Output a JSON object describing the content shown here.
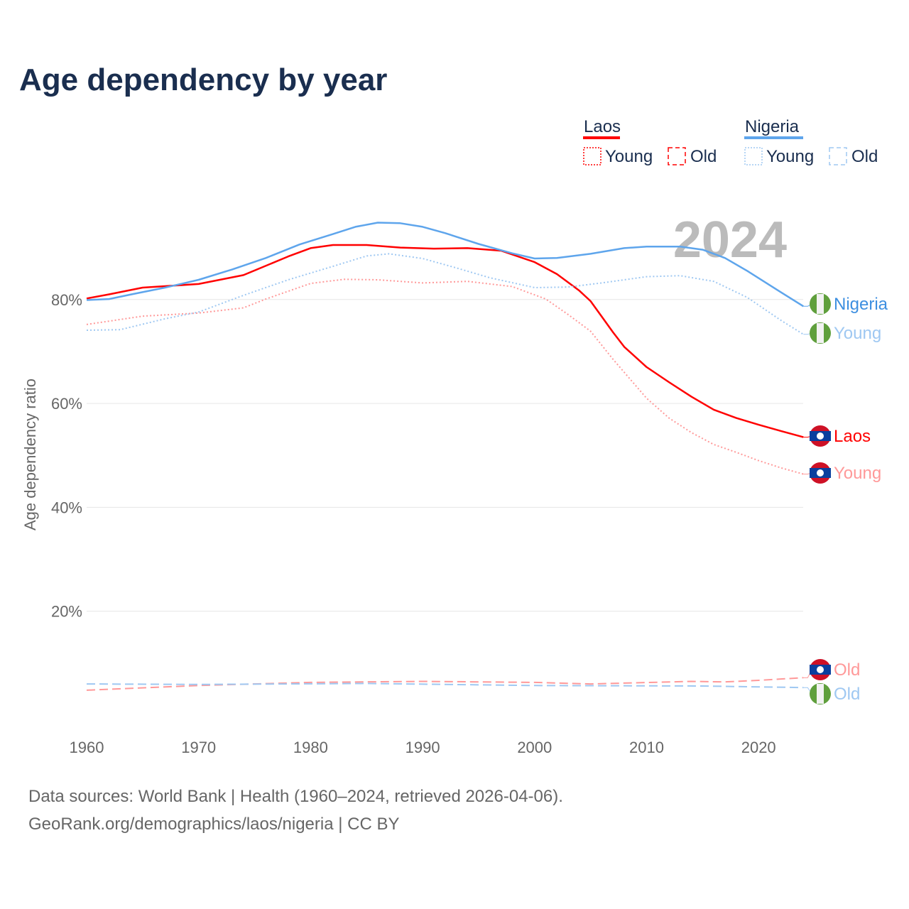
{
  "chart_data": {
    "type": "line",
    "title": "Age dependency by year",
    "ylabel": "Age dependency ratio",
    "xlabel": "",
    "year_watermark": "2024",
    "xlim": [
      1960,
      2024
    ],
    "ylim": [
      0,
      100
    ],
    "yticks": [
      20,
      40,
      60,
      80
    ],
    "ytick_labels": [
      "20%",
      "40%",
      "60%",
      "80%"
    ],
    "xticks": [
      1960,
      1970,
      1980,
      1990,
      2000,
      2010,
      2020
    ],
    "xtick_labels": [
      "1960",
      "1970",
      "1980",
      "1990",
      "2000",
      "2010",
      "2020"
    ],
    "grid": true,
    "legend": {
      "placement": "top-right",
      "groups": [
        {
          "country": "Laos",
          "color": "#ff0000",
          "items": [
            "Young",
            "Old"
          ]
        },
        {
          "country": "Nigeria",
          "color": "#5ea5ec",
          "items": [
            "Young",
            "Old"
          ]
        }
      ]
    },
    "series": [
      {
        "name": "Laos",
        "label": "Laos",
        "kind": "total",
        "color": "#ff0000",
        "flag": "laos",
        "x": [
          1960,
          1962,
          1965,
          1970,
          1974,
          1978,
          1980,
          1982,
          1985,
          1988,
          1991,
          1994,
          1997,
          2000,
          2002,
          2004,
          2005,
          2006,
          2007,
          2008,
          2010,
          2012,
          2014,
          2016,
          2018,
          2020,
          2022,
          2024
        ],
        "y": [
          80.2,
          81,
          82.3,
          83,
          84.7,
          88.3,
          89.9,
          90.5,
          90.5,
          90,
          89.8,
          89.9,
          89.4,
          87.2,
          84.9,
          81.7,
          79.7,
          76.7,
          73.7,
          70.9,
          67,
          64.1,
          61.3,
          58.8,
          57.2,
          55.9,
          54.7,
          53.5
        ]
      },
      {
        "name": "Laos Young",
        "label": "Young",
        "kind": "young",
        "color": "#ff9999",
        "flag": "laos",
        "x": [
          1960,
          1965,
          1970,
          1974,
          1976,
          1980,
          1983,
          1986,
          1990,
          1994,
          1998,
          2001,
          2003,
          2005,
          2007,
          2010,
          2012,
          2014,
          2016,
          2018,
          2020,
          2022,
          2024
        ],
        "y": [
          75.2,
          76.8,
          77.4,
          78.4,
          80.1,
          83.1,
          83.9,
          83.8,
          83.2,
          83.5,
          82.5,
          80.1,
          77.1,
          73.9,
          68.5,
          61,
          57.2,
          54.4,
          52.1,
          50.6,
          49,
          47.6,
          46.4
        ]
      },
      {
        "name": "Laos Old",
        "label": "Old",
        "kind": "old",
        "color": "#ff9999",
        "flag": "laos",
        "x": [
          1960,
          1970,
          1980,
          1990,
          2000,
          2005,
          2014,
          2017,
          2020,
          2024
        ],
        "y": [
          4.8,
          5.7,
          6.3,
          6.5,
          6.3,
          6.0,
          6.5,
          6.4,
          6.7,
          7.2
        ]
      },
      {
        "name": "Nigeria",
        "label": "Nigeria",
        "kind": "total",
        "color": "#5ea5ec",
        "flag": "nigeria",
        "x": [
          1960,
          1962,
          1964,
          1967,
          1970,
          1973,
          1976,
          1979,
          1982,
          1984,
          1986,
          1988,
          1990,
          1992,
          1995,
          1998,
          2000,
          2002,
          2005,
          2008,
          2010,
          2013,
          2015,
          2017,
          2019,
          2022,
          2024
        ],
        "y": [
          79.9,
          80.1,
          81,
          82.3,
          83.8,
          85.8,
          88,
          90.6,
          92.6,
          94,
          94.8,
          94.7,
          94,
          92.8,
          90.7,
          88.9,
          87.9,
          88,
          88.8,
          89.9,
          90.2,
          90.2,
          89.6,
          88,
          85.5,
          81.4,
          78.7
        ]
      },
      {
        "name": "Nigeria Young",
        "label": "Young",
        "kind": "young",
        "color": "#9fc8f2",
        "flag": "nigeria",
        "x": [
          1960,
          1963,
          1967,
          1970,
          1974,
          1978,
          1982,
          1985,
          1987,
          1990,
          1993,
          1996,
          2000,
          2003,
          2006,
          2010,
          2013,
          2016,
          2019,
          2022,
          2024
        ],
        "y": [
          74.1,
          74.2,
          76.3,
          77.6,
          80.8,
          83.8,
          86.4,
          88.4,
          88.8,
          87.9,
          86.1,
          84.2,
          82.3,
          82.4,
          83.2,
          84.4,
          84.6,
          83.5,
          80.4,
          76,
          73.3
        ]
      },
      {
        "name": "Nigeria Old",
        "label": "Old",
        "kind": "old",
        "color": "#9fc8f2",
        "flag": "nigeria",
        "x": [
          1960,
          1970,
          1985,
          2000,
          2015,
          2024
        ],
        "y": [
          6,
          5.9,
          6.1,
          5.7,
          5.6,
          5.3
        ]
      }
    ]
  },
  "footer": {
    "line1": "Data sources: World Bank | Health (1960–2024, retrieved 2026-04-06).",
    "line2": "GeoRank.org/demographics/laos/nigeria | CC BY"
  }
}
